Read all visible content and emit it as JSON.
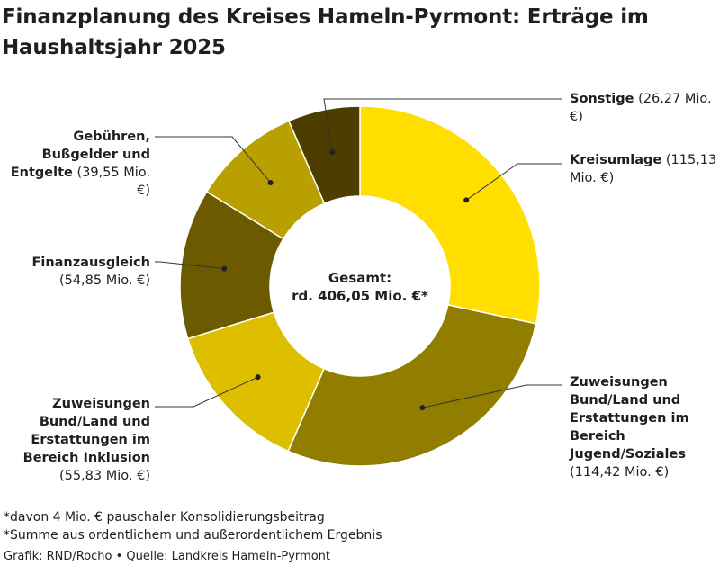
{
  "chart_data": {
    "type": "pie",
    "title": "Finanzplanung des Kreises Hameln-Pyrmont: Erträge im Haushaltsjahr 2025",
    "center_label": [
      "Gesamt:",
      "rd. 406,05 Mio. €*"
    ],
    "unit": "Mio. €",
    "slices": [
      {
        "name": "Kreisumlage",
        "value": 115.13,
        "value_label": "(115,13 Mio. €)",
        "color": "#FFDE00"
      },
      {
        "name": "Zuweisungen Bund/Land und Erstattungen im Bereich Jugend/Soziales",
        "value": 114.42,
        "value_label": "(114,42 Mio. €)",
        "color": "#917D00"
      },
      {
        "name": "Zuweisungen Bund/Land und Erstattungen im Bereich Inklusion",
        "value": 55.83,
        "value_label": "(55,83 Mio. €)",
        "color": "#DDBF00"
      },
      {
        "name": "Finanzausgleich",
        "value": 54.85,
        "value_label": "(54,85 Mio. €)",
        "color": "#6B5A00"
      },
      {
        "name": "Gebühren, Bußgelder und Entgelte",
        "value": 39.55,
        "value_label": "(39,55 Mio. €)",
        "color": "#B8A000"
      },
      {
        "name": "Sonstige",
        "value": 26.27,
        "value_label": "(26,27 Mio. €)",
        "color": "#4D3E00"
      }
    ]
  },
  "footnotes": {
    "note1": "*davon 4 Mio. € pauschaler Konsolidierungsbeitrag",
    "note2": "*Summe aus ordentlichem und außerordentlichem Ergebnis",
    "credit": "Grafik: RND/Rocho • Quelle: Landkreis Hameln-Pyrmont"
  }
}
